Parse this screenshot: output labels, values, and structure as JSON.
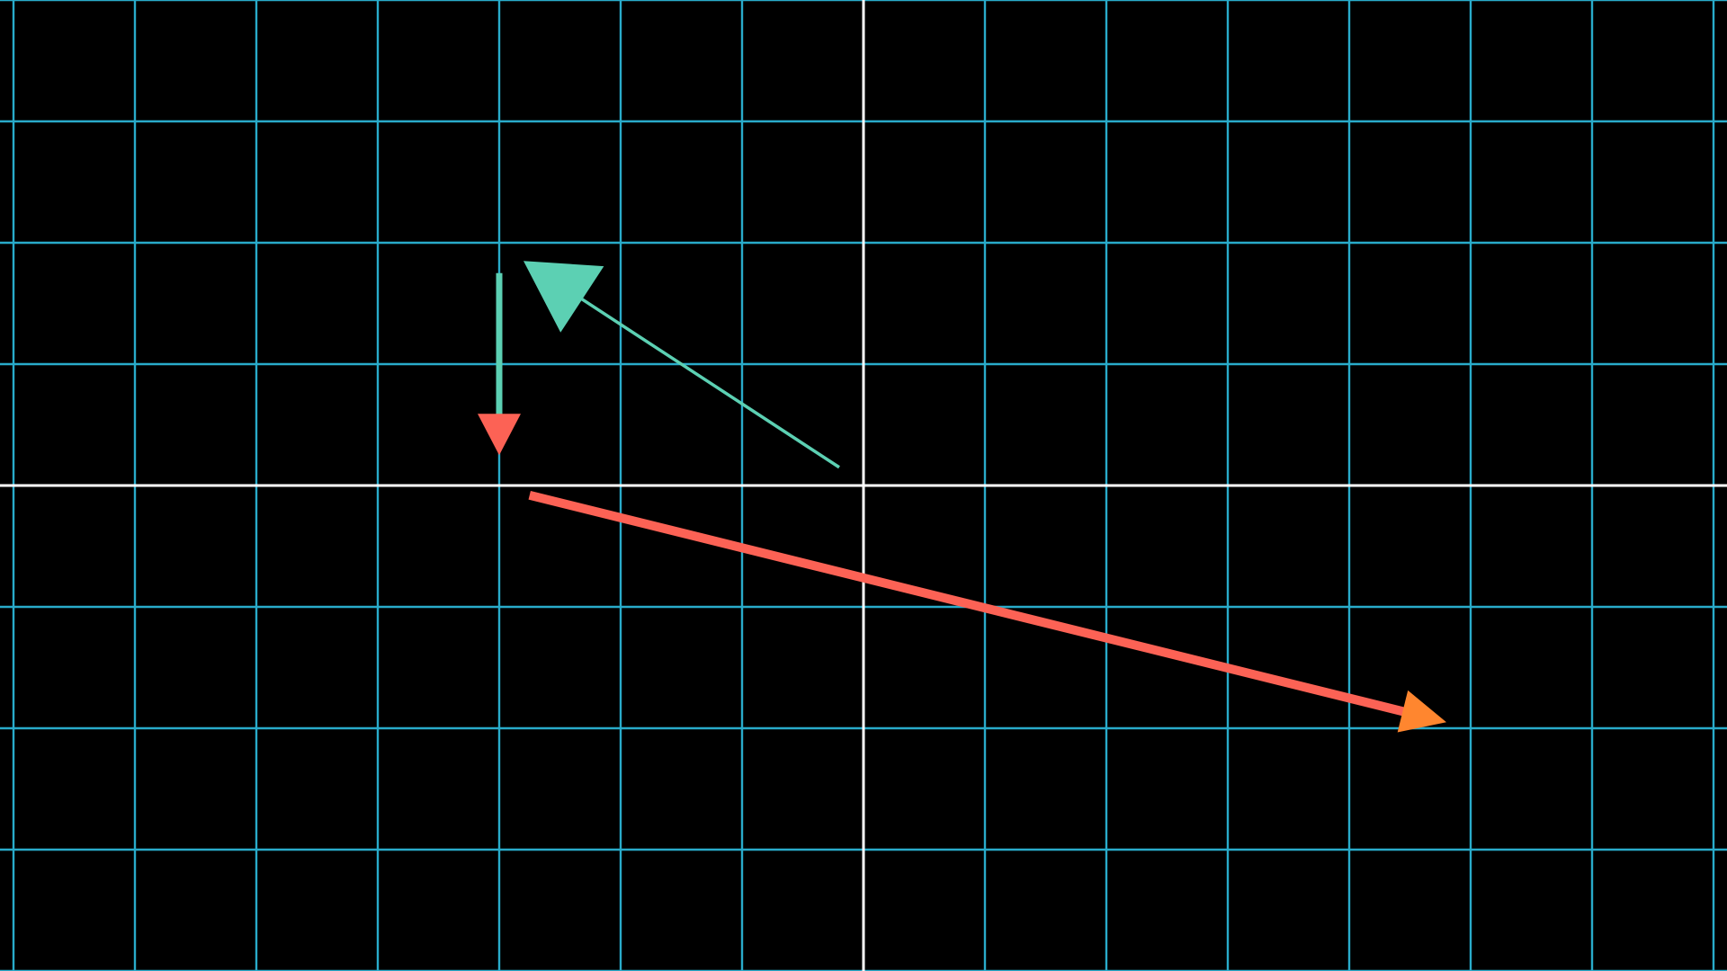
{
  "canvas": {
    "background": "#000000"
  },
  "grid": {
    "x_range": [
      -7,
      7
    ],
    "y_range": [
      -4,
      4
    ],
    "step": 1,
    "line_color": "#29abca",
    "axis_color": "#ffffff"
  },
  "vectors": [
    {
      "id": "short-down",
      "tail": [
        -3,
        1.75
      ],
      "head": [
        -3,
        0.25
      ],
      "shaft_color": "#5cd0b3",
      "head_color": "#fc6255"
    },
    {
      "id": "thin-up-left",
      "tail": [
        -0.2,
        0.15
      ],
      "head": [
        -2.8,
        1.85
      ],
      "shaft_color": "#5cd0b3",
      "head_color": "#5cd0b3"
    },
    {
      "id": "long-down-right",
      "tail": [
        -2.75,
        -0.08
      ],
      "head": [
        4.8,
        -1.95
      ],
      "shaft_color": "#fc6255",
      "head_color": "#ff862f"
    }
  ]
}
